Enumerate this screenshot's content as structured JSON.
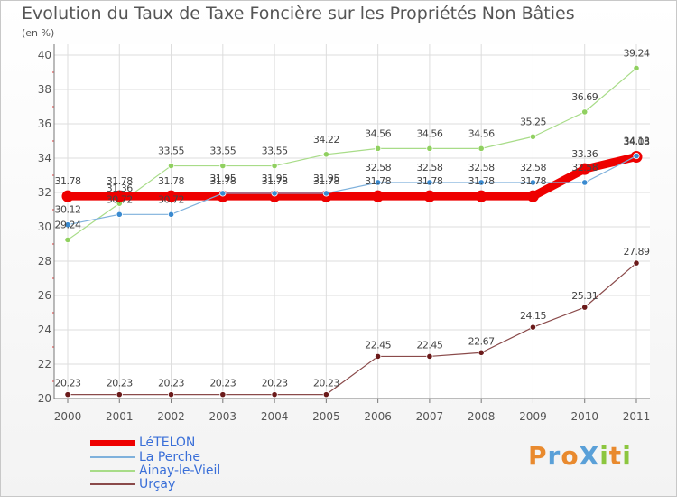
{
  "title": "Evolution du Taux de Taxe Foncière sur les Propriétés Non Bâties",
  "subtitle": "(en %)",
  "logo": {
    "text": "ProXiti",
    "letters": [
      {
        "ch": "P",
        "color": "#e98a2e"
      },
      {
        "ch": "r",
        "color": "#5aa0d8"
      },
      {
        "ch": "o",
        "color": "#e98a2e"
      },
      {
        "ch": "X",
        "color": "#5aa0d8"
      },
      {
        "ch": "i",
        "color": "#8cc63f"
      },
      {
        "ch": "t",
        "color": "#e98a2e"
      },
      {
        "ch": "i",
        "color": "#8cc63f"
      }
    ]
  },
  "chart_data": {
    "type": "line",
    "title": "Evolution du Taux de Taxe Foncière sur les Propriétés Non Bâties",
    "ylabel": "(en %)",
    "xlabel": "",
    "x": [
      "2000",
      "2001",
      "2002",
      "2003",
      "2004",
      "2005",
      "2006",
      "2007",
      "2008",
      "2009",
      "2010",
      "2011"
    ],
    "ylim": [
      20,
      40
    ],
    "yticks": [
      20,
      22,
      24,
      26,
      28,
      30,
      32,
      34,
      36,
      38,
      40
    ],
    "grid": true,
    "legend_position": "bottom-left",
    "series": [
      {
        "name": "LéTELON",
        "color": "#ee0000",
        "values": [
          31.78,
          31.78,
          31.78,
          31.78,
          31.78,
          31.78,
          31.78,
          31.78,
          31.78,
          31.78,
          33.36,
          34.08
        ],
        "labels": [
          "31.78",
          "31.78",
          "31.78",
          "31.78",
          "31.78",
          "31.78",
          "31.78",
          "31.78",
          "31.78",
          "31.78",
          "33.36",
          "34.08"
        ]
      },
      {
        "name": "La Perche",
        "color": "#3a8ad0",
        "values": [
          30.12,
          30.72,
          30.72,
          31.95,
          31.95,
          31.95,
          32.58,
          32.58,
          32.58,
          32.58,
          32.58,
          34.13
        ],
        "labels": [
          "30.12",
          "30.72",
          "30.72",
          "31.95",
          "31.95",
          "31.95",
          "32.58",
          "32.58",
          "32.58",
          "32.58",
          "32.58",
          "34.13"
        ]
      },
      {
        "name": "Ainay-le-Vieil",
        "color": "#90d060",
        "values": [
          29.24,
          31.36,
          33.55,
          33.55,
          33.55,
          34.22,
          34.56,
          34.56,
          34.56,
          35.25,
          36.69,
          39.24
        ],
        "labels": [
          "29.24",
          "31.36",
          "33.55",
          "33.55",
          "33.55",
          "34.22",
          "34.56",
          "34.56",
          "34.56",
          "35.25",
          "36.69",
          "39.24"
        ]
      },
      {
        "name": "Urçay",
        "color": "#6b1a1a",
        "values": [
          20.23,
          20.23,
          20.23,
          20.23,
          20.23,
          20.23,
          22.45,
          22.45,
          22.67,
          24.15,
          25.31,
          27.89
        ],
        "labels": [
          "20.23",
          "20.23",
          "20.23",
          "20.23",
          "20.23",
          "20.23",
          "22.45",
          "22.45",
          "22.67",
          "24.15",
          "25.31",
          "27.89"
        ]
      }
    ]
  }
}
